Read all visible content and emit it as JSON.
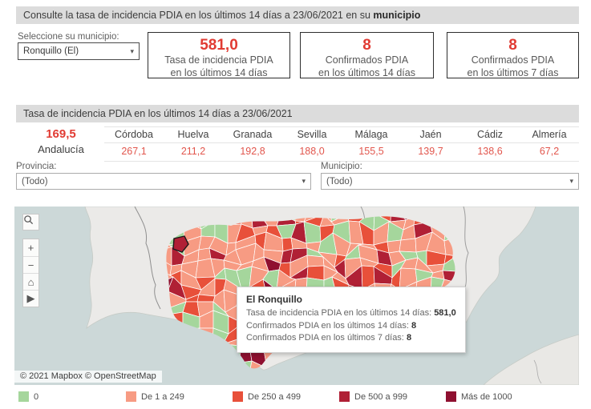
{
  "header1": {
    "prefix": "Consulte la tasa de incidencia PDIA en los últimos 14 días a 23/06/2021 en su ",
    "bold": "municipio"
  },
  "selector": {
    "label": "Seleccione su municipio:",
    "value": "Ronquillo (El)",
    "arrow": "▾"
  },
  "stats": [
    {
      "value": "581,0",
      "line1": "Tasa de incidencia PDIA",
      "line2": "en los últimos 14 días"
    },
    {
      "value": "8",
      "line1": "Confirmados PDIA",
      "line2": "en los últimos 14 días"
    },
    {
      "value": "8",
      "line1": "Confirmados PDIA",
      "line2": "en los últimos 7 días"
    }
  ],
  "header2": {
    "text": "Tasa de incidencia PDIA en los últimos 14 días a 23/06/2021"
  },
  "region_summary": {
    "value": "169,5",
    "label": "Andalucía"
  },
  "provinces": [
    {
      "name": "Córdoba",
      "value": "267,1"
    },
    {
      "name": "Huelva",
      "value": "211,2"
    },
    {
      "name": "Granada",
      "value": "192,8"
    },
    {
      "name": "Sevilla",
      "value": "188,0"
    },
    {
      "name": "Málaga",
      "value": "155,5"
    },
    {
      "name": "Jaén",
      "value": "139,7"
    },
    {
      "name": "Cádiz",
      "value": "138,6"
    },
    {
      "name": "Almería",
      "value": "67,2"
    }
  ],
  "chart_data": {
    "type": "table",
    "title": "Tasa de incidencia PDIA en los últimos 14 días a 23/06/2021",
    "categories": [
      "Andalucía",
      "Córdoba",
      "Huelva",
      "Granada",
      "Sevilla",
      "Málaga",
      "Jaén",
      "Cádiz",
      "Almería"
    ],
    "values": [
      169.5,
      267.1,
      211.2,
      192.8,
      188.0,
      155.5,
      139.7,
      138.6,
      67.2
    ]
  },
  "filters": [
    {
      "label": "Provincia:",
      "value": "(Todo)",
      "arrow": "▾"
    },
    {
      "label": "Municipio:",
      "value": "(Todo)",
      "arrow": "▾"
    }
  ],
  "map": {
    "controls": {
      "zoom_in": "+",
      "zoom_out": "−",
      "home": "⌂",
      "pan": "▶"
    },
    "tooltip": {
      "title": "El Ronquillo",
      "rows": [
        {
          "label": "Tasa de incidencia PDIA en los últimos 14 días: ",
          "value": "581,0"
        },
        {
          "label": "Confirmados PDIA en los últimos 14 días: ",
          "value": "8"
        },
        {
          "label": "Confirmados PDIA en los últimos 7 días: ",
          "value": "8"
        }
      ]
    },
    "attribution": "© 2021 Mapbox © OpenStreetMap",
    "palette": {
      "green": "#a5d69c",
      "salmon": "#f79b83",
      "red": "#e8503a",
      "dark": "#b02035",
      "darkest": "#8f1030",
      "sea": "#ccd8d8",
      "land": "#ebeae8",
      "selected_stroke": "#1a1a1a"
    }
  },
  "legend": [
    {
      "label": "0",
      "color": "#a5d69c"
    },
    {
      "label": "De 1 a 249",
      "color": "#f79b83"
    },
    {
      "label": "De 250 a 499",
      "color": "#e8503a"
    },
    {
      "label": "De 500 a 999",
      "color": "#b02035"
    },
    {
      "label": "Más de 1000",
      "color": "#8f1030"
    }
  ],
  "colors": {
    "accent_red": "#e13b33",
    "value_red": "#e2564d",
    "header_bg": "#dcdcdc"
  }
}
